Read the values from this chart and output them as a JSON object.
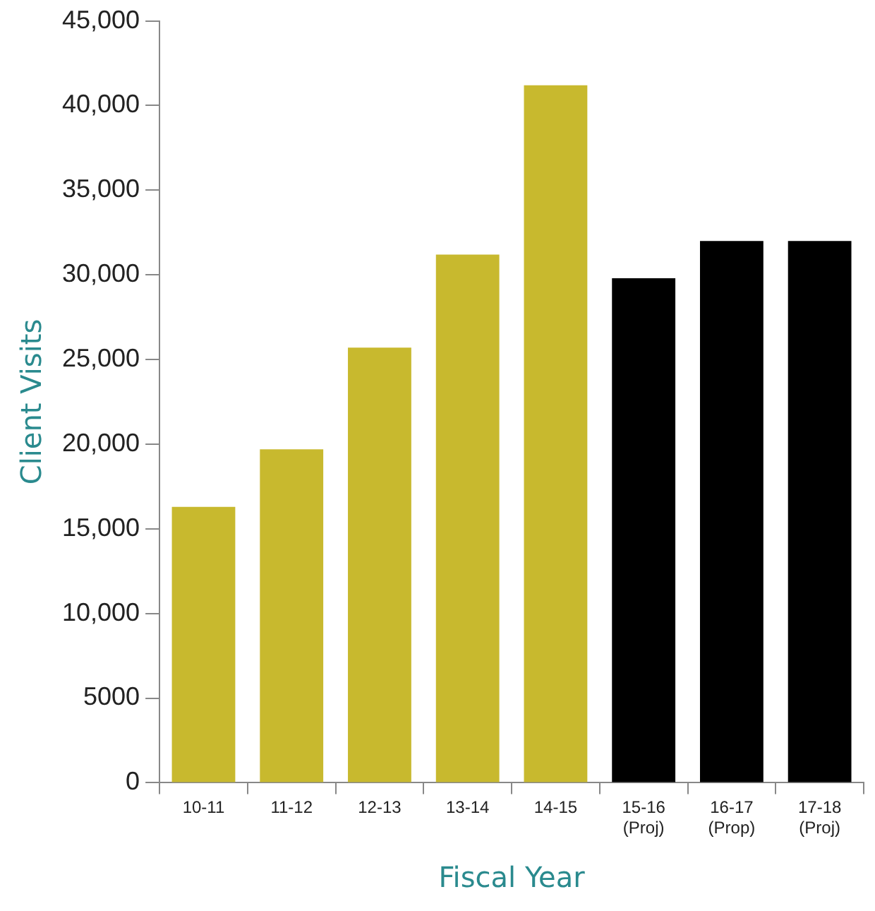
{
  "chart_data": {
    "type": "bar",
    "xlabel": "Fiscal Year",
    "ylabel": "Client Visits",
    "categories": [
      "10-11",
      "11-12",
      "12-13",
      "13-14",
      "14-15",
      "15-16\n(Proj)",
      "16-17\n(Prop)",
      "17-18\n(Proj)"
    ],
    "values": [
      16300,
      19700,
      25700,
      31200,
      41200,
      29800,
      32000,
      32000
    ],
    "colors": [
      "#c8b92e",
      "#c8b92e",
      "#c8b92e",
      "#c8b92e",
      "#c8b92e",
      "#000000",
      "#000000",
      "#000000"
    ],
    "ylim": [
      0,
      45000
    ],
    "yticks": [
      0,
      5000,
      {
        "value": 10000,
        "label": "10,000"
      },
      {
        "value": 15000,
        "label": "15,000"
      },
      {
        "value": 20000,
        "label": "20,000"
      },
      {
        "value": 25000,
        "label": "25,000"
      },
      {
        "value": 30000,
        "label": "30,000"
      },
      {
        "value": 35000,
        "label": "35,000"
      },
      {
        "value": 40000,
        "label": "40,000"
      },
      {
        "value": 45000,
        "label": "45,000"
      }
    ],
    "grid": false,
    "legend": false
  }
}
